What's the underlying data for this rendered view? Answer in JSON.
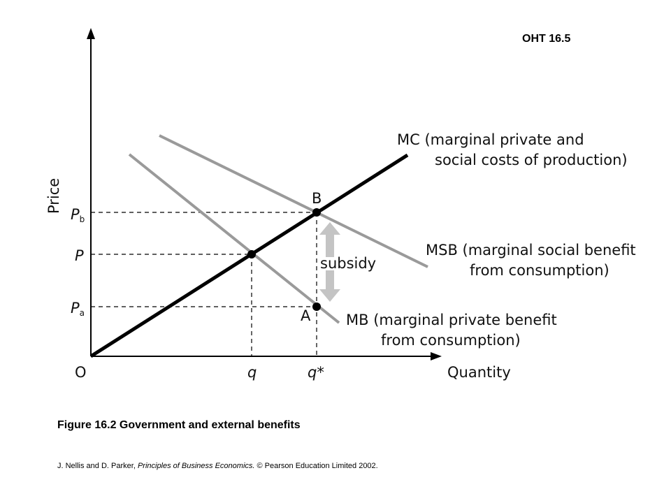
{
  "header": {
    "oht": "OHT 16.5"
  },
  "diagram": {
    "y_axis_label": "Price",
    "x_axis_label": "Quantity",
    "origin_label": "O",
    "price_labels": {
      "pb_main": "P",
      "pb_sub": "b",
      "p": "P",
      "pa_main": "P",
      "pa_sub": "a"
    },
    "quantity_labels": {
      "q": "q",
      "qstar": "q*"
    },
    "point_labels": {
      "b": "B",
      "a": "A"
    },
    "subsidy_label": "subsidy",
    "curves": {
      "mc_line1": "MC (marginal private and",
      "mc_line2": "social costs of production)",
      "msb_line1": "MSB (marginal social benefit",
      "msb_line2": "from consumption)",
      "mb_line1": "MB (marginal private benefit",
      "mb_line2": "from consumption)"
    },
    "colors": {
      "mc": "#000000",
      "benefit": "#9a9a9a",
      "subsidy_arrow": "#c4c4c4"
    }
  },
  "caption": "Figure 16.2  Government and external benefits",
  "credit": {
    "authors": "J. Nellis and D. Parker,",
    "title": "Principles of Business Economics.",
    "rest": "© Pearson Education Limited 2002."
  }
}
